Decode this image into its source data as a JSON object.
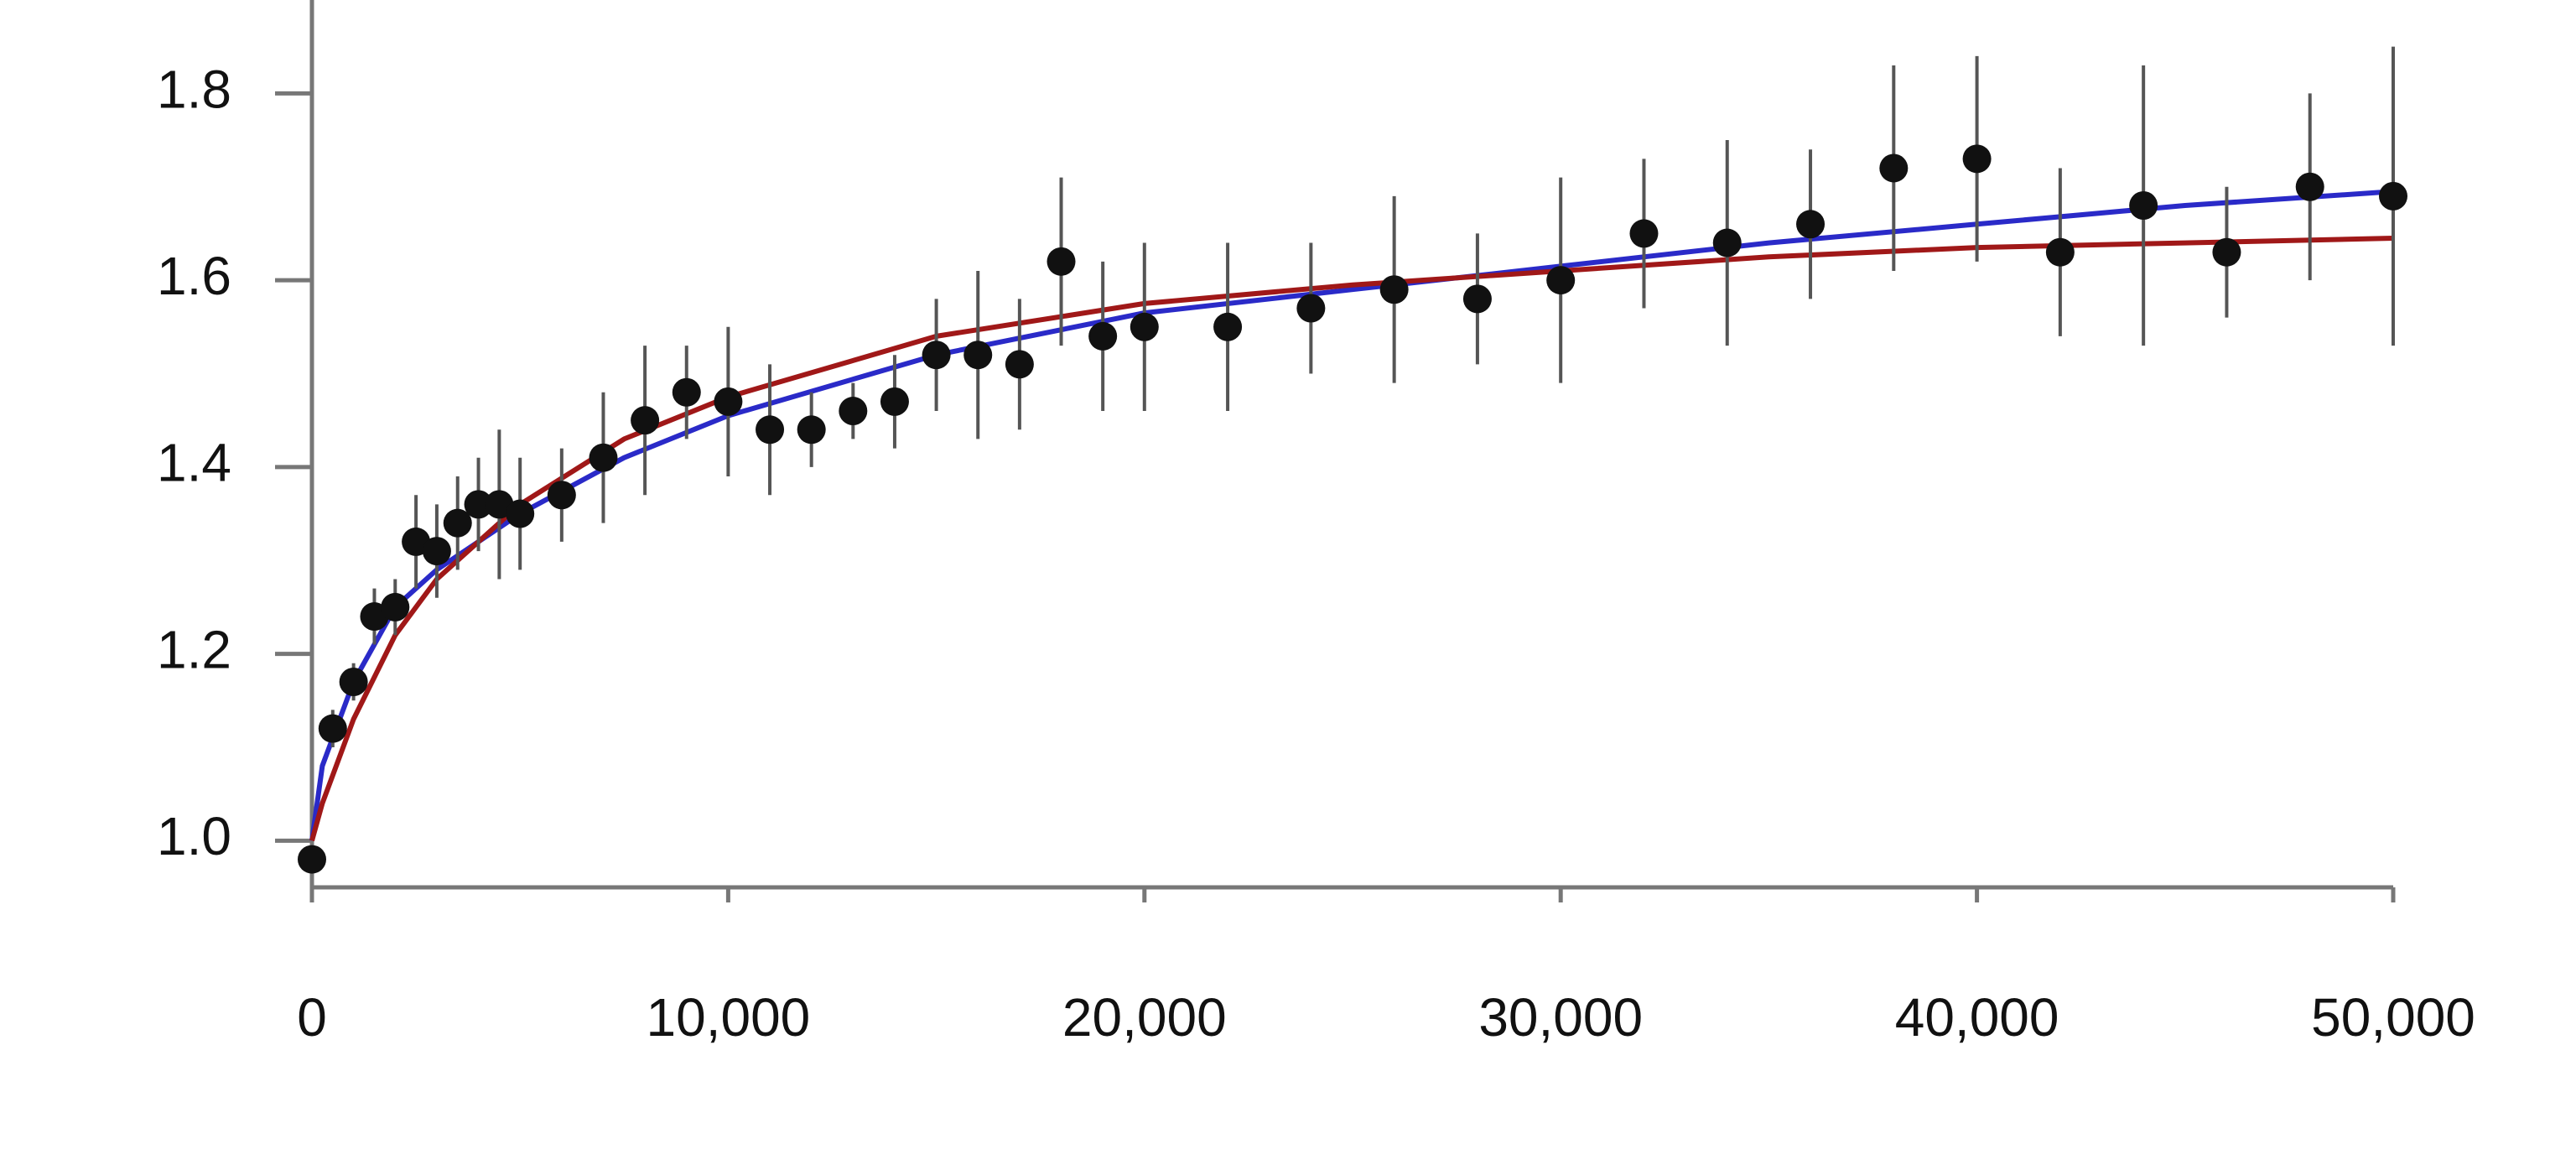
{
  "chart_data": {
    "type": "scatter",
    "xlim": [
      0,
      50000
    ],
    "ylim": [
      0.95,
      1.9
    ],
    "xticks": [
      0,
      {
        "value": 10000,
        "label": "10,000"
      },
      {
        "value": 20000,
        "label": "20,000"
      },
      {
        "value": 30000,
        "label": "30,000"
      },
      {
        "value": 40000,
        "label": "40,000"
      },
      {
        "value": 50000,
        "label": "50,000"
      }
    ],
    "yticks": [
      {
        "value": 1,
        "label": "1.0"
      },
      1.2,
      1.4,
      1.6,
      1.8
    ],
    "points": {
      "color": "#111111",
      "error_color": "#555555",
      "x": [
        0,
        500,
        1000,
        1500,
        2000,
        2500,
        3000,
        3500,
        4000,
        4500,
        5000,
        6000,
        7000,
        8000,
        9000,
        10000,
        11000,
        12000,
        13000,
        14000,
        15000,
        16000,
        17000,
        18000,
        19000,
        20000,
        22000,
        24000,
        26000,
        28000,
        30000,
        32000,
        34000,
        36000,
        38000,
        40000,
        42000,
        44000,
        46000,
        48000,
        50000
      ],
      "values": [
        0.98,
        1.12,
        1.17,
        1.24,
        1.25,
        1.32,
        1.31,
        1.34,
        1.36,
        1.36,
        1.35,
        1.37,
        1.41,
        1.45,
        1.48,
        1.47,
        1.44,
        1.44,
        1.46,
        1.47,
        1.52,
        1.52,
        1.51,
        1.62,
        1.54,
        1.55,
        1.55,
        1.57,
        1.59,
        1.58,
        1.6,
        1.65,
        1.64,
        1.66,
        1.72,
        1.73,
        1.63,
        1.68,
        1.63,
        1.7,
        1.69
      ],
      "errors": [
        0.01,
        0.02,
        0.02,
        0.03,
        0.03,
        0.05,
        0.05,
        0.05,
        0.05,
        0.08,
        0.06,
        0.05,
        0.07,
        0.08,
        0.05,
        0.08,
        0.07,
        0.04,
        0.03,
        0.05,
        0.06,
        0.09,
        0.07,
        0.09,
        0.08,
        0.09,
        0.09,
        0.07,
        0.1,
        0.07,
        0.11,
        0.08,
        0.11,
        0.08,
        0.11,
        0.11,
        0.09,
        0.15,
        0.07,
        0.1,
        0.16
      ]
    },
    "series": [
      {
        "color": "#2a2ac8",
        "x": [
          0,
          250,
          500,
          1000,
          2000,
          3000,
          5000,
          7500,
          10000,
          15000,
          20000,
          25000,
          30000,
          35000,
          40000,
          45000,
          50000
        ],
        "values": [
          1.0,
          1.08,
          1.11,
          1.17,
          1.25,
          1.29,
          1.35,
          1.41,
          1.455,
          1.52,
          1.565,
          1.59,
          1.615,
          1.64,
          1.66,
          1.68,
          1.695
        ]
      },
      {
        "color": "#a01818",
        "x": [
          0,
          250,
          500,
          1000,
          2000,
          3000,
          5000,
          7500,
          10000,
          15000,
          20000,
          25000,
          30000,
          35000,
          40000,
          45000,
          50000
        ],
        "values": [
          1.0,
          1.04,
          1.07,
          1.13,
          1.22,
          1.28,
          1.36,
          1.43,
          1.475,
          1.54,
          1.575,
          1.595,
          1.61,
          1.625,
          1.635,
          1.64,
          1.645
        ]
      }
    ]
  }
}
